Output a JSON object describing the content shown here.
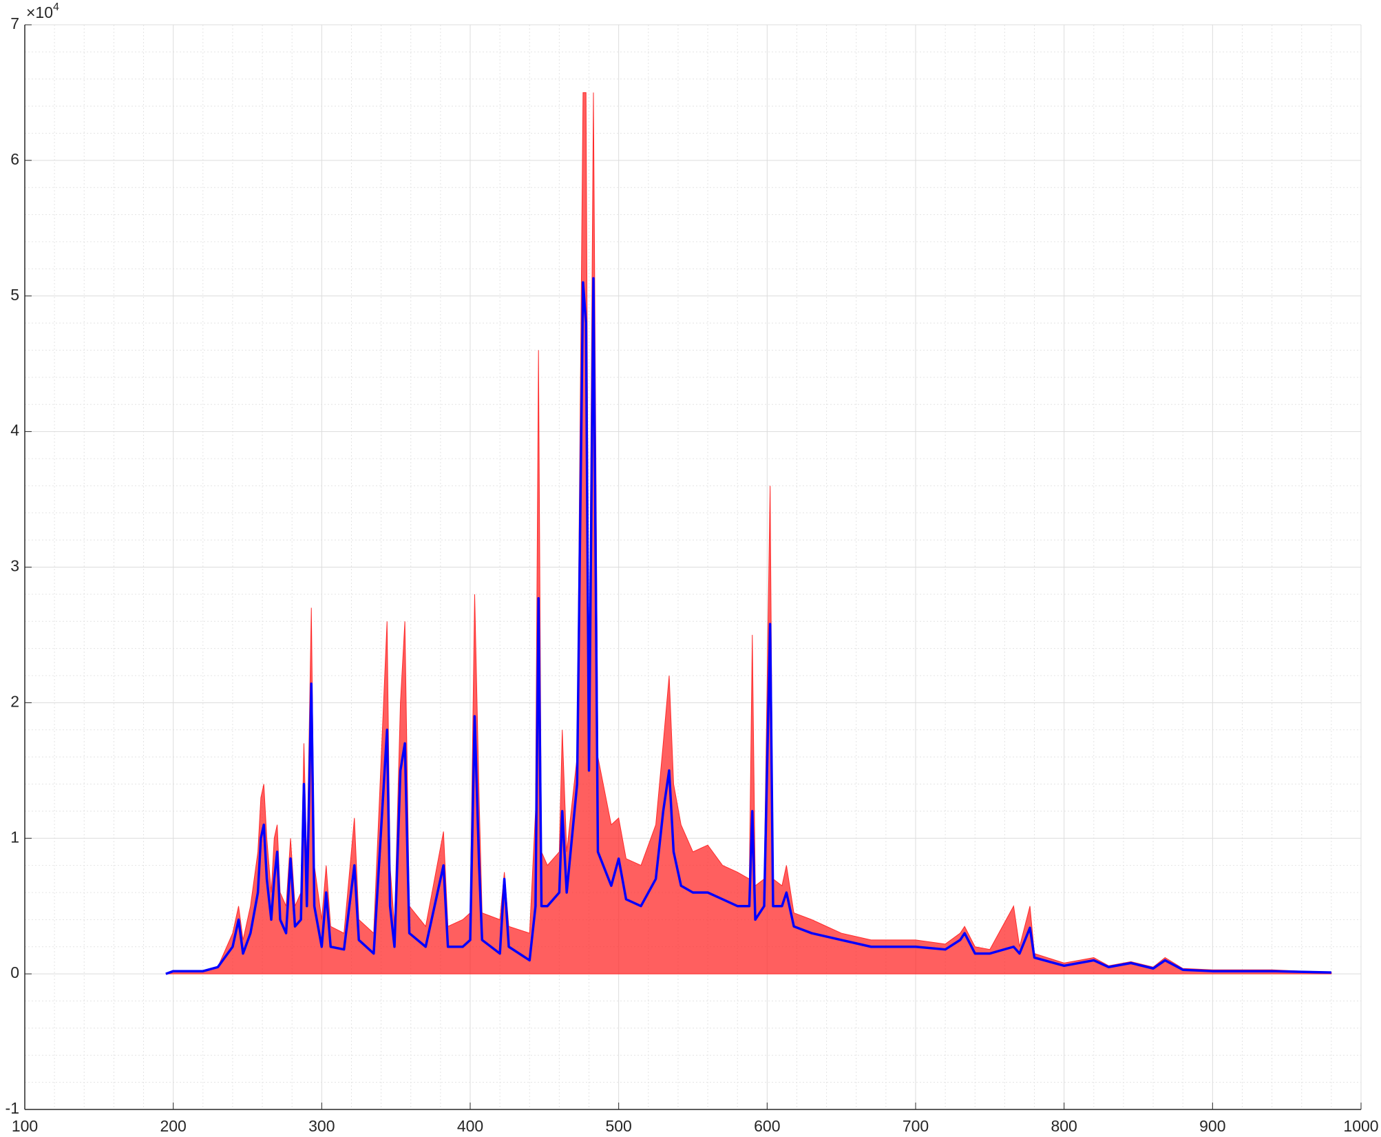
{
  "chart_data": {
    "type": "line",
    "y_multiplier": {
      "base": "×10",
      "exponent": "4"
    },
    "x": [
      195,
      200,
      220,
      230,
      240,
      244,
      247,
      252,
      257,
      259,
      261,
      263,
      266,
      268,
      270,
      272,
      276,
      279,
      282,
      286,
      288,
      290,
      293,
      295,
      300,
      303,
      306,
      315,
      322,
      325,
      335,
      344,
      346,
      349,
      353,
      356,
      359,
      370,
      382,
      385,
      395,
      400,
      403,
      406,
      408,
      420,
      423,
      426,
      440,
      444,
      446,
      448,
      452,
      460,
      462,
      465,
      472,
      476,
      478,
      480,
      483,
      486,
      495,
      500,
      505,
      515,
      525,
      530,
      534,
      537,
      542,
      550,
      560,
      570,
      580,
      588,
      590,
      592,
      598,
      602,
      604,
      610,
      613,
      618,
      630,
      650,
      670,
      700,
      720,
      730,
      733,
      740,
      750,
      766,
      770,
      777,
      780,
      800,
      820,
      830,
      845,
      860,
      868,
      880,
      900,
      940,
      980
    ],
    "series": [
      {
        "color": "#ff2a2a",
        "values": [
          0,
          0.02,
          0.02,
          0.05,
          0.3,
          0.5,
          0.25,
          0.5,
          0.9,
          1.3,
          1.4,
          1.0,
          0.6,
          1.0,
          1.1,
          0.6,
          0.5,
          1.0,
          0.5,
          0.6,
          1.7,
          0.8,
          2.7,
          0.8,
          0.4,
          0.8,
          0.35,
          0.3,
          1.15,
          0.4,
          0.3,
          2.6,
          0.8,
          0.35,
          2.0,
          2.6,
          0.5,
          0.35,
          1.05,
          0.35,
          0.4,
          0.45,
          2.8,
          1.3,
          0.45,
          0.4,
          0.75,
          0.35,
          0.3,
          1.2,
          4.6,
          0.9,
          0.8,
          0.9,
          1.8,
          0.9,
          1.6,
          6.5,
          6.5,
          2.0,
          6.5,
          1.6,
          1.1,
          1.15,
          0.85,
          0.8,
          1.1,
          1.7,
          2.2,
          1.4,
          1.1,
          0.9,
          0.95,
          0.8,
          0.75,
          0.7,
          2.5,
          0.65,
          0.7,
          3.6,
          0.7,
          0.65,
          0.8,
          0.45,
          0.4,
          0.3,
          0.25,
          0.25,
          0.22,
          0.3,
          0.35,
          0.2,
          0.18,
          0.5,
          0.2,
          0.5,
          0.15,
          0.08,
          0.12,
          0.06,
          0.09,
          0.05,
          0.12,
          0.04,
          0.03,
          0.03,
          0.01
        ]
      },
      {
        "color": "#0000ff",
        "values": [
          0,
          0.02,
          0.02,
          0.05,
          0.2,
          0.4,
          0.15,
          0.3,
          0.6,
          1.0,
          1.1,
          0.7,
          0.4,
          0.7,
          0.9,
          0.4,
          0.3,
          0.85,
          0.35,
          0.4,
          1.4,
          0.5,
          2.14,
          0.5,
          0.2,
          0.6,
          0.2,
          0.18,
          0.8,
          0.25,
          0.15,
          1.8,
          0.5,
          0.2,
          1.5,
          1.7,
          0.3,
          0.2,
          0.8,
          0.2,
          0.2,
          0.25,
          1.9,
          0.8,
          0.25,
          0.15,
          0.7,
          0.2,
          0.1,
          0.5,
          2.77,
          0.5,
          0.5,
          0.6,
          1.2,
          0.6,
          1.4,
          5.1,
          4.8,
          1.5,
          5.13,
          0.9,
          0.65,
          0.85,
          0.55,
          0.5,
          0.7,
          1.2,
          1.5,
          0.9,
          0.65,
          0.6,
          0.6,
          0.55,
          0.5,
          0.5,
          1.2,
          0.4,
          0.5,
          2.58,
          0.5,
          0.5,
          0.6,
          0.35,
          0.3,
          0.25,
          0.2,
          0.2,
          0.18,
          0.25,
          0.3,
          0.15,
          0.15,
          0.2,
          0.15,
          0.34,
          0.12,
          0.06,
          0.1,
          0.05,
          0.08,
          0.04,
          0.1,
          0.03,
          0.02,
          0.02,
          0.01
        ]
      }
    ],
    "xlim": [
      100,
      1000
    ],
    "xticks": [
      100,
      200,
      300,
      400,
      500,
      600,
      700,
      800,
      900,
      1000
    ],
    "ylim": [
      -1,
      7
    ],
    "yticks": [
      -1,
      0,
      1,
      2,
      3,
      4,
      5,
      6,
      7
    ],
    "grid": true,
    "minor_grid": true
  }
}
